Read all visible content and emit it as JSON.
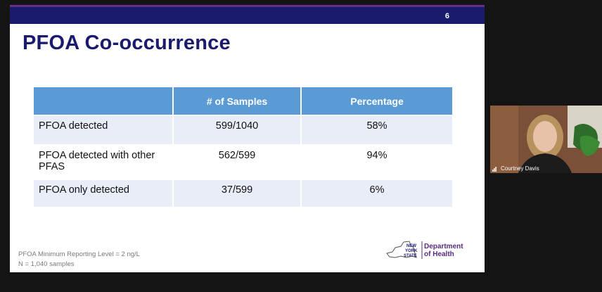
{
  "slide": {
    "number": "6",
    "title": "PFOA Co-occurrence",
    "table": {
      "headers": [
        "",
        "# of Samples",
        "Percentage"
      ],
      "rows": [
        {
          "label": "PFOA detected",
          "samples": "599/1040",
          "percentage": "58%"
        },
        {
          "label": "PFOA detected with other PFAS",
          "samples": "562/599",
          "percentage": "94%"
        },
        {
          "label": "PFOA only detected",
          "samples": "37/599",
          "percentage": "6%"
        }
      ]
    },
    "footnotes": [
      "PFOA Minimum Reporting Level = 2 ng/L",
      "N = 1,040 samples"
    ],
    "logo": {
      "state_line1": "NEW",
      "state_line2": "YORK",
      "state_line3": "STATE",
      "dept_line1": "Department",
      "dept_line2": "of Health"
    }
  },
  "video": {
    "speaker_name": "Courtney Davis",
    "icon": "signal-bars-icon"
  },
  "colors": {
    "title_navy": "#1b1b6e",
    "header_blue": "#5b9bd5",
    "row_light": "#e9edf7",
    "logo_purple": "#5a2a82"
  }
}
